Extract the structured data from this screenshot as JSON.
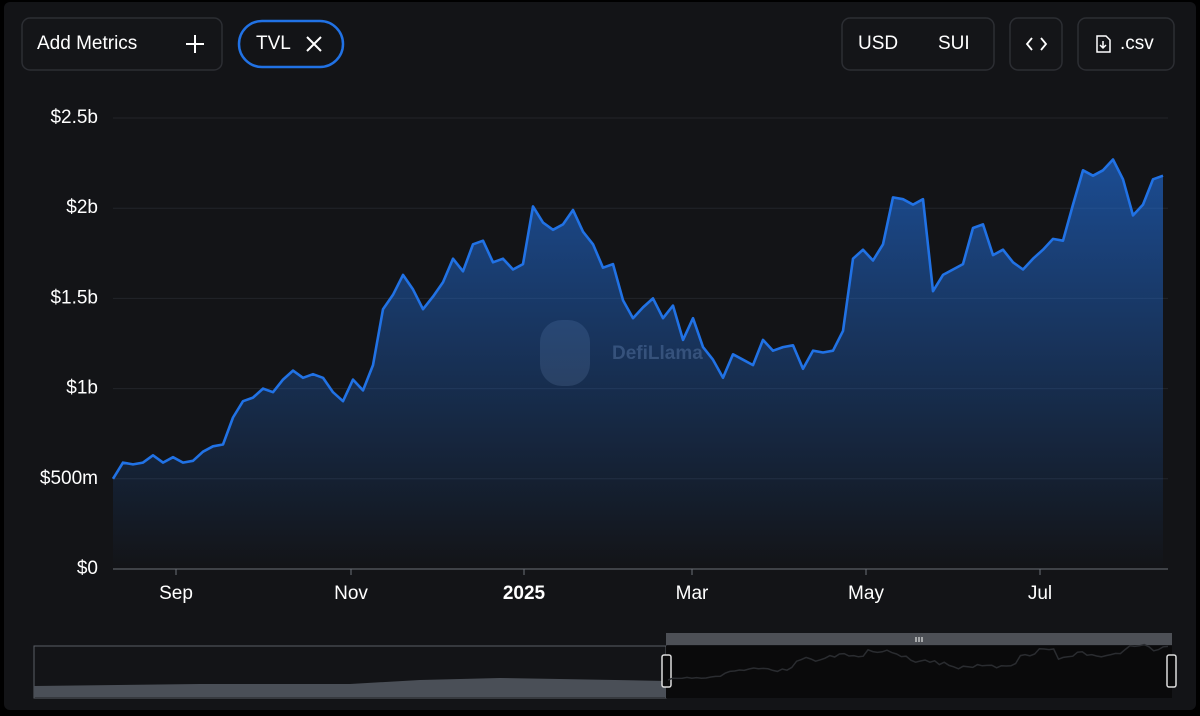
{
  "toolbar": {
    "add_metrics": "Add Metrics",
    "currencies": [
      "USD",
      "SUI"
    ],
    "active_currency": 0,
    "csv": ".csv"
  },
  "chart_data": {
    "type": "area",
    "watermark": "DefiLlama",
    "series": [
      {
        "name": "TVL",
        "color": "#2172e5",
        "values": [
          0.5,
          0.59,
          0.58,
          0.59,
          0.63,
          0.59,
          0.62,
          0.59,
          0.6,
          0.65,
          0.68,
          0.69,
          0.84,
          0.93,
          0.95,
          1.0,
          0.98,
          1.05,
          1.1,
          1.06,
          1.08,
          1.06,
          0.98,
          0.93,
          1.05,
          0.99,
          1.13,
          1.44,
          1.52,
          1.63,
          1.55,
          1.44,
          1.51,
          1.59,
          1.72,
          1.65,
          1.8,
          1.82,
          1.7,
          1.72,
          1.66,
          1.69,
          2.01,
          1.92,
          1.88,
          1.91,
          1.99,
          1.87,
          1.8,
          1.67,
          1.69,
          1.49,
          1.39,
          1.45,
          1.5,
          1.39,
          1.46,
          1.27,
          1.39,
          1.23,
          1.16,
          1.06,
          1.19,
          1.16,
          1.13,
          1.27,
          1.21,
          1.23,
          1.24,
          1.11,
          1.21,
          1.2,
          1.21,
          1.32,
          1.72,
          1.77,
          1.71,
          1.8,
          2.06,
          2.05,
          2.02,
          2.05,
          1.54,
          1.63,
          1.66,
          1.69,
          1.89,
          1.91,
          1.74,
          1.77,
          1.7,
          1.66,
          1.72,
          1.77,
          1.83,
          1.82,
          2.02,
          2.21,
          2.18,
          2.21,
          2.27,
          2.16,
          1.96,
          2.02,
          2.16,
          2.18
        ]
      }
    ],
    "xlim": [
      0,
      105.5
    ],
    "xticks": [
      {
        "value": 6.3,
        "label": "Sep"
      },
      {
        "value": 23.8,
        "label": "Nov"
      },
      {
        "value": 41.1,
        "label": "2025",
        "bold": true
      },
      {
        "value": 57.9,
        "label": "Mar"
      },
      {
        "value": 75.3,
        "label": "May"
      },
      {
        "value": 92.7,
        "label": "Jul"
      }
    ],
    "ylim": [
      0,
      2.5
    ],
    "yticks": [
      {
        "value": 0,
        "label": "$0"
      },
      {
        "value": 0.5,
        "label": "$500m"
      },
      {
        "value": 1,
        "label": "$1b"
      },
      {
        "value": 1.5,
        "label": "$1.5b"
      },
      {
        "value": 2,
        "label": "$2b"
      },
      {
        "value": 2.5,
        "label": "$2.5b"
      }
    ],
    "grid": true
  }
}
